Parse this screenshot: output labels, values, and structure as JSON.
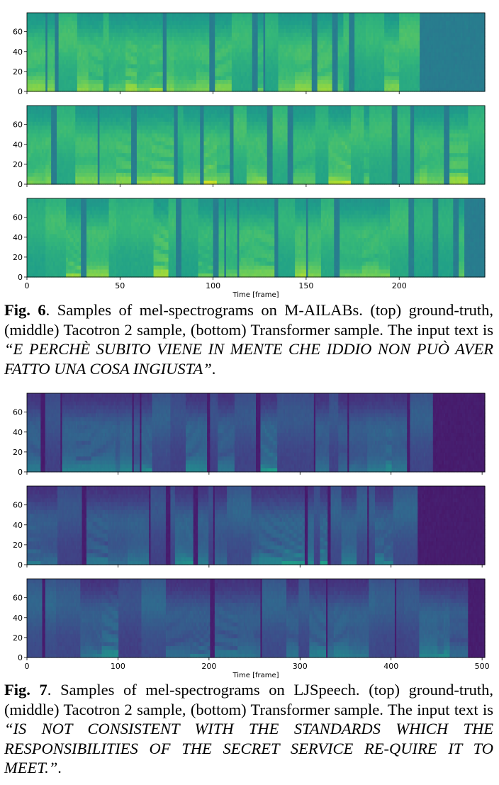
{
  "figures": [
    {
      "id": "fig6",
      "caption": {
        "label": "Fig. 6",
        "text": ". Samples of mel-spectrograms on M-AILABs. (top) ground-truth, (middle) Tacotron 2 sample, (bottom) Transformer sample. The input text is ",
        "quote": "“E PERCHÈ SUBITO VIENE IN MENTE CHE IDDIO NON PUÒ AVER FATTO UNA COSA INGIUSTA”",
        "end": "."
      },
      "chart_data": {
        "type": "heatmap",
        "panels": [
          "ground-truth",
          "Tacotron 2 sample",
          "Transformer sample"
        ],
        "xlabel": "Time [frame]",
        "xlim": [
          0,
          246
        ],
        "ylim": [
          0,
          79
        ],
        "xticks": [
          0,
          50,
          100,
          150,
          200
        ],
        "yticks": [
          0,
          20,
          40,
          60
        ],
        "colormap": "viridis"
      }
    },
    {
      "id": "fig7",
      "caption": {
        "label": "Fig. 7",
        "text": ". Samples of mel-spectrograms on LJSpeech. (top) ground-truth, (middle) Tacotron 2 sample, (bottom) Transformer sample. The input text is ",
        "quote": "“IS NOT CONSISTENT WITH THE STANDARDS WHICH THE RESPONSIBILITIES OF THE SECRET SERVICE RE-QUIRE IT TO MEET.”",
        "end": "."
      },
      "chart_data": {
        "type": "heatmap",
        "panels": [
          "ground-truth",
          "Tacotron 2 sample",
          "Transformer sample"
        ],
        "xlabel": "Time [frame]",
        "xlim": [
          0,
          503
        ],
        "ylim": [
          0,
          79
        ],
        "xticks": [
          0,
          100,
          200,
          300,
          400,
          500
        ],
        "yticks": [
          0,
          20,
          40,
          60
        ],
        "colormap": "viridis"
      }
    }
  ]
}
